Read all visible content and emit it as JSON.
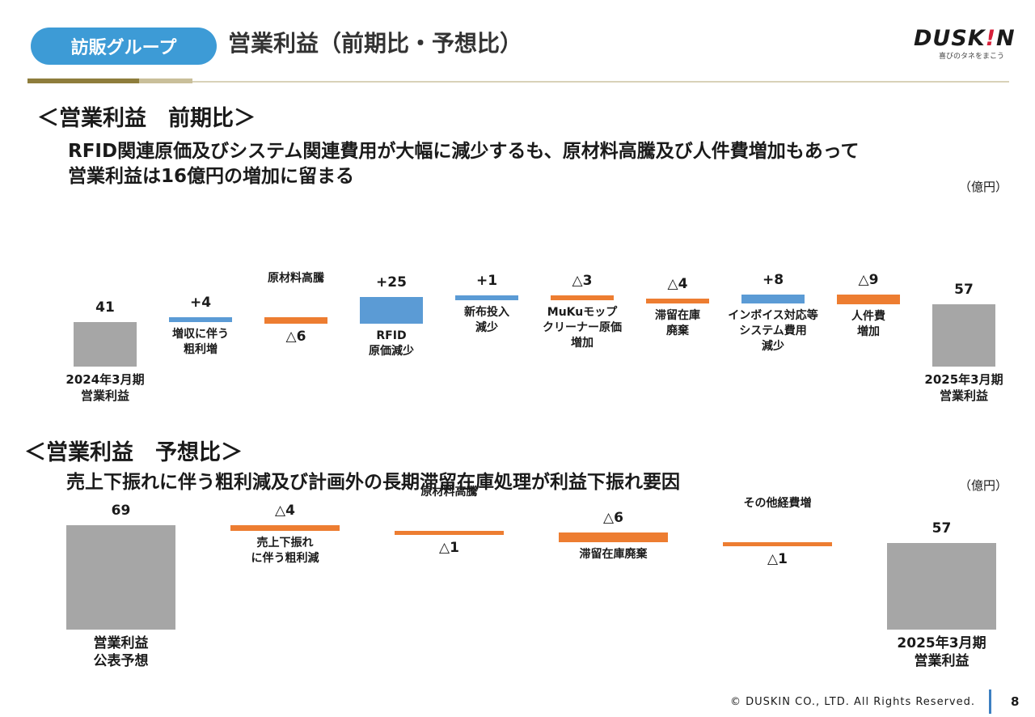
{
  "header": {
    "group_label": "訪販グループ",
    "title": "営業利益（前期比・予想比）",
    "logo_text_main": "DUSK",
    "logo_text_i": "!",
    "logo_text_end": "N",
    "logo_tagline": "喜びのタネをまこう"
  },
  "section1": {
    "heading": "＜営業利益　前期比＞",
    "subtitle_line1": "RFID関連原価及びシステム関連費用が大幅に減少するも、原材料高騰及び人件費増加もあって",
    "subtitle_line2": "営業利益は16億円の増加に留まる",
    "unit": "（億円）"
  },
  "section2": {
    "heading": "＜営業利益　予想比＞",
    "subtitle": "売上下振れに伴う粗利減及び計画外の長期滞留在庫処理が利益下振れ要因",
    "unit": "（億円）"
  },
  "colors": {
    "total": "#a6a6a6",
    "increase": "#5b9bd5",
    "decrease": "#ed7d31",
    "accent": "#3d9bd6"
  },
  "chart_data": [
    {
      "type": "bar",
      "subtype": "waterfall",
      "title": "＜営業利益　前期比＞",
      "unit": "（億円）",
      "items": [
        {
          "label_lines": [
            "2024年3月期",
            "営業利益"
          ],
          "value": 41,
          "display": "41",
          "kind": "total"
        },
        {
          "label_lines": [
            "増収に伴う",
            "粗利増"
          ],
          "value": 4,
          "display": "+4",
          "kind": "increase"
        },
        {
          "label_lines": [
            "原材料高騰"
          ],
          "value": -6,
          "display": "△6",
          "kind": "decrease"
        },
        {
          "label_lines": [
            "RFID",
            "原価減少"
          ],
          "value": 25,
          "display": "+25",
          "kind": "increase"
        },
        {
          "label_lines": [
            "新布投入",
            "減少"
          ],
          "value": 1,
          "display": "+1",
          "kind": "increase"
        },
        {
          "label_lines": [
            "MuKuモップ",
            "クリーナー原価",
            "増加"
          ],
          "value": -3,
          "display": "△3",
          "kind": "decrease"
        },
        {
          "label_lines": [
            "滞留在庫",
            "廃棄"
          ],
          "value": -4,
          "display": "△4",
          "kind": "decrease"
        },
        {
          "label_lines": [
            "インボイス対応等",
            "システム費用",
            "減少"
          ],
          "value": 8,
          "display": "+8",
          "kind": "increase"
        },
        {
          "label_lines": [
            "人件費",
            "増加"
          ],
          "value": -9,
          "display": "△9",
          "kind": "decrease"
        },
        {
          "label_lines": [
            "2025年3月期",
            "営業利益"
          ],
          "value": 57,
          "display": "57",
          "kind": "total"
        }
      ]
    },
    {
      "type": "bar",
      "subtype": "waterfall",
      "title": "＜営業利益　予想比＞",
      "unit": "（億円）",
      "items": [
        {
          "label_lines": [
            "営業利益",
            "公表予想"
          ],
          "value": 69,
          "display": "69",
          "kind": "total"
        },
        {
          "label_lines": [
            "売上下振れ",
            "に伴う粗利減"
          ],
          "value": -4,
          "display": "△4",
          "kind": "decrease"
        },
        {
          "label_lines": [
            "原材料高騰"
          ],
          "value": -1,
          "display": "△1",
          "kind": "decrease"
        },
        {
          "label_lines": [
            "滞留在庫廃棄"
          ],
          "value": -6,
          "display": "△6",
          "kind": "decrease"
        },
        {
          "label_lines": [
            "その他経費増"
          ],
          "value": -1,
          "display": "△1",
          "kind": "decrease"
        },
        {
          "label_lines": [
            "2025年3月期",
            "営業利益"
          ],
          "value": 57,
          "display": "57",
          "kind": "total"
        }
      ]
    }
  ],
  "footer": {
    "copyright": "© DUSKIN CO., LTD. All Rights Reserved.",
    "page_number": "8"
  }
}
